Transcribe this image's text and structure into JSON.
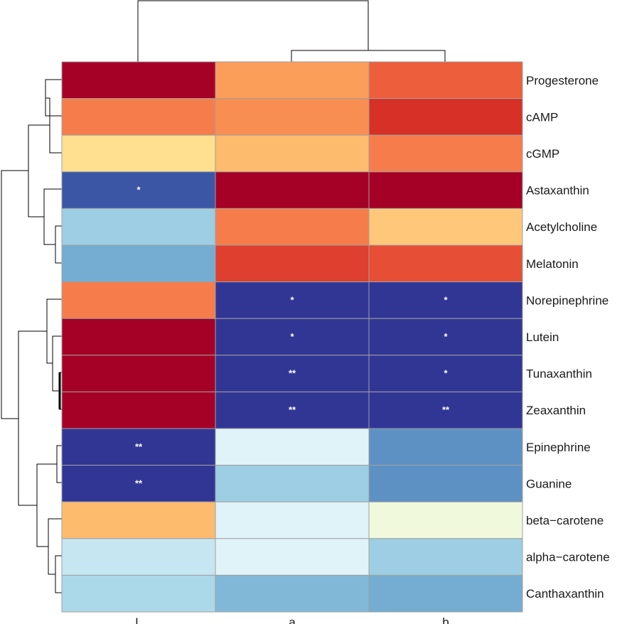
{
  "chart_data": {
    "type": "heatmap",
    "title": "",
    "rows": [
      "Progesterone",
      "cAMP",
      "cGMP",
      "Astaxanthin",
      "Acetylcholine",
      "Melatonin",
      "Norepinephrine",
      "Lutein",
      "Tunaxanthin",
      "Zeaxanthin",
      "Epinephrine",
      "Guanine",
      "beta−carotene",
      "alpha−carotene",
      "Canthaxanthin"
    ],
    "columns": [
      "L",
      "a",
      "b"
    ],
    "values": [
      [
        2.0,
        0.9,
        1.3
      ],
      [
        1.1,
        1.0,
        1.6
      ],
      [
        0.4,
        0.7,
        1.1
      ],
      [
        -1.8,
        2.0,
        2.0
      ],
      [
        -0.9,
        1.1,
        0.6
      ],
      [
        -1.2,
        1.5,
        1.4
      ],
      [
        1.1,
        -2.0,
        -2.0
      ],
      [
        2.0,
        -2.0,
        -2.0
      ],
      [
        2.0,
        -2.0,
        -2.0
      ],
      [
        2.0,
        -2.0,
        -2.0
      ],
      [
        -2.0,
        -0.4,
        -1.4
      ],
      [
        -2.0,
        -0.9,
        -1.4
      ],
      [
        0.7,
        -0.4,
        -0.2
      ],
      [
        -0.6,
        -0.4,
        -0.9
      ],
      [
        -0.8,
        -1.1,
        -1.2
      ]
    ],
    "significance": [
      [
        "",
        "",
        ""
      ],
      [
        "",
        "",
        ""
      ],
      [
        "",
        "",
        ""
      ],
      [
        "*",
        "",
        ""
      ],
      [
        "",
        "",
        ""
      ],
      [
        "",
        "",
        ""
      ],
      [
        "",
        "*",
        "*"
      ],
      [
        "",
        "*",
        "*"
      ],
      [
        "",
        "**",
        "*"
      ],
      [
        "",
        "**",
        "**"
      ],
      [
        "**",
        "",
        ""
      ],
      [
        "**",
        "",
        ""
      ],
      [
        "",
        "",
        ""
      ],
      [
        "",
        "",
        ""
      ],
      [
        "",
        "",
        ""
      ]
    ],
    "color_scale": [
      "#313695",
      "#4575b4",
      "#74add1",
      "#abd9e9",
      "#e0f3f8",
      "#ffffbf",
      "#fee090",
      "#fdae61",
      "#f46d43",
      "#d73027",
      "#a50026"
    ],
    "value_range": [
      -2,
      2
    ],
    "cell_border_color": "#a0a0a0",
    "column_dendrogram": "((L),(a,b))",
    "row_dendrogram": "(((Progesterone,cAMP),cGMP),(Astaxanthin,(Acetylcholine,Melatonin))),((Norepinephrine,(Lutein,(Tunaxanthin,Zeaxanthin))),((Epinephrine,Guanine),(beta−carotene,(alpha−carotene,Canthaxanthin))))"
  }
}
